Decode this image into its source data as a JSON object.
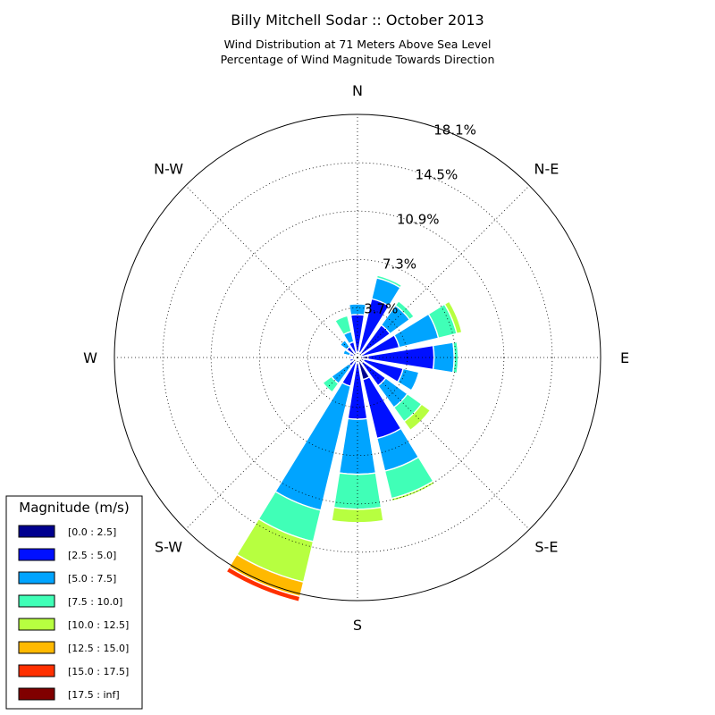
{
  "chart_data": {
    "type": "windrose",
    "title": "Billy Mitchell Sodar :: October 2013",
    "subtitle_lines": [
      "Wind Distribution at 71 Meters Above Sea Level",
      "Percentage of Wind Magnitude Towards Direction"
    ],
    "directions": [
      "N",
      "N-E",
      "E",
      "S-E",
      "S",
      "S-W",
      "W",
      "N-W"
    ],
    "radial_ticks": [
      3.7,
      7.3,
      10.9,
      14.5,
      18.1
    ],
    "radial_tick_labels": [
      "3.7%",
      "7.3%",
      "10.9%",
      "14.5%",
      "18.1%"
    ],
    "rmax": 18.1,
    "legend": {
      "title": "Magnitude (m/s)",
      "placement": "bottom-left",
      "bins": [
        {
          "label": "[0.0 : 2.5]",
          "color": "#00008f"
        },
        {
          "label": "[2.5 : 5.0]",
          "color": "#0010ff"
        },
        {
          "label": "[5.0 : 7.5]",
          "color": "#00a4ff"
        },
        {
          "label": "[7.5 : 10.0]",
          "color": "#40ffb7"
        },
        {
          "label": "[10.0 : 12.5]",
          "color": "#b7ff40"
        },
        {
          "label": "[12.5 : 15.0]",
          "color": "#ffb900"
        },
        {
          "label": "[15.0 : 17.5]",
          "color": "#ff3000"
        },
        {
          "label": "[17.5 : inf]",
          "color": "#800000"
        }
      ]
    },
    "sector_width_deg": 18,
    "sectors": [
      {
        "dir_deg": 0,
        "cumulative": [
          0.4,
          3.2,
          4.0,
          4.0
        ]
      },
      {
        "dir_deg": 22.5,
        "cumulative": [
          0.4,
          4.5,
          6.1,
          6.3
        ]
      },
      {
        "dir_deg": 45,
        "cumulative": [
          0.3,
          3.0,
          4.8,
          5.2
        ]
      },
      {
        "dir_deg": 67.5,
        "cumulative": [
          0.3,
          3.2,
          6.2,
          7.6,
          8.0
        ]
      },
      {
        "dir_deg": 90,
        "cumulative": [
          0.8,
          5.7,
          7.2,
          7.5
        ]
      },
      {
        "dir_deg": 112.5,
        "cumulative": [
          0.5,
          3.5,
          4.7
        ]
      },
      {
        "dir_deg": 135,
        "cumulative": [
          0.5,
          2.6,
          4.6,
          5.9,
          6.7
        ]
      },
      {
        "dir_deg": 157.5,
        "cumulative": [
          1.7,
          6.2,
          8.7,
          10.8,
          11.0
        ]
      },
      {
        "dir_deg": 180,
        "cumulative": [
          0.4,
          4.6,
          8.7,
          11.3,
          12.3
        ]
      },
      {
        "dir_deg": 202.5,
        "cumulative": [
          0.3,
          2.2,
          11.7,
          14.1,
          17.2,
          18.3,
          18.7
        ]
      },
      {
        "dir_deg": 225,
        "cumulative": [
          0.2,
          0.8,
          2.4,
          3.2
        ]
      },
      {
        "dir_deg": 247.5,
        "cumulative": [
          0.2,
          0.6
        ]
      },
      {
        "dir_deg": 270,
        "cumulative": [
          0.2
        ]
      },
      {
        "dir_deg": 292.5,
        "cumulative": [
          0.2,
          0.6,
          1.1
        ]
      },
      {
        "dir_deg": 315,
        "cumulative": [
          0.2,
          1.0,
          1.6
        ]
      },
      {
        "dir_deg": 337.5,
        "cumulative": [
          0.3,
          1.2,
          2.0,
          3.2
        ]
      }
    ]
  }
}
